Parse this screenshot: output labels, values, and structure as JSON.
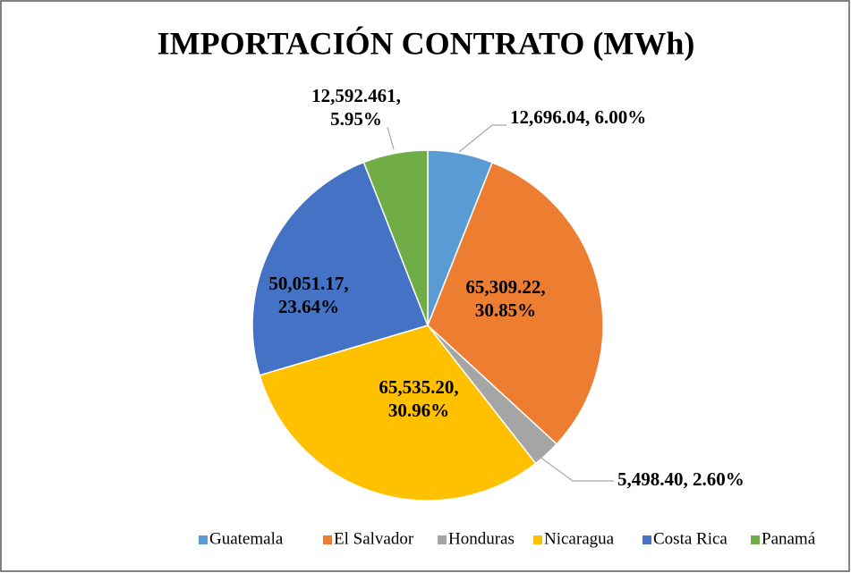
{
  "chart_data": {
    "type": "pie",
    "title": "IMPORTACIÓN CONTRATO (MWh)",
    "categories": [
      "Guatemala",
      "El Salvador",
      "Honduras",
      "Nicaragua",
      "Costa Rica",
      "Panamá"
    ],
    "values": [
      12696.04,
      65309.22,
      5498.4,
      65535.2,
      50051.17,
      12592.461
    ],
    "value_labels": [
      [
        "12,696.04, 6.00%"
      ],
      [
        "65,309.22,",
        "30.85%"
      ],
      [
        "5,498.40, 2.60%"
      ],
      [
        "65,535.20,",
        "30.96%"
      ],
      [
        "50,051.17,",
        "23.64%"
      ],
      [
        "12,592.461,",
        "5.95%"
      ]
    ],
    "colors": [
      "#5b9bd5",
      "#ed7d31",
      "#a5a5a5",
      "#ffc000",
      "#4472c4",
      "#70ad47"
    ],
    "legend": "bottom"
  }
}
